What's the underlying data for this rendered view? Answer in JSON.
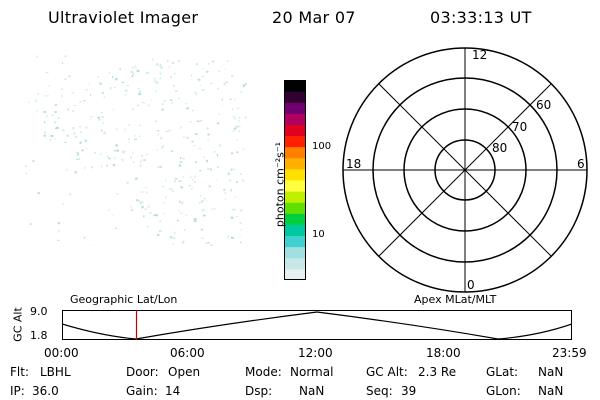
{
  "header": {
    "title": "Ultraviolet Imager",
    "date": "20 Mar 07",
    "time": "03:33:13 UT"
  },
  "colorbar": {
    "axis_title": "photon cm⁻²s⁻¹",
    "tick_100": "100",
    "tick_10": "10",
    "colors": [
      "#e6f2f2",
      "#c8e8e8",
      "#a0e0e0",
      "#40d0d0",
      "#00c8a0",
      "#00d040",
      "#60e000",
      "#c0f000",
      "#ffff40",
      "#ffe000",
      "#ffb000",
      "#ff8000",
      "#ff2000",
      "#e00020",
      "#b00060",
      "#700070",
      "#300030",
      "#000000"
    ]
  },
  "polar": {
    "lat_labels": [
      "60",
      "70",
      "80"
    ],
    "mlt_labels": {
      "top": "12",
      "bottom": "0",
      "left": "18",
      "right": "6"
    }
  },
  "timeline": {
    "left_title": "Geographic Lat/Lon",
    "right_title": "Apex MLat/MLT",
    "y_title": "GC Alt",
    "y_ticks": [
      "9.0",
      "1.8"
    ],
    "time_ticks": [
      "00:00",
      "06:00",
      "12:00",
      "18:00",
      "23:59"
    ],
    "current_time_fraction": 0.146
  },
  "info": {
    "flt_label": "Flt:",
    "flt_value": "LBHL",
    "ip_label": "IP:",
    "ip_value": "36.0",
    "door_label": "Door:",
    "door_value": "Open",
    "gain_label": "Gain:",
    "gain_value": "14",
    "mode_label": "Mode:",
    "mode_value": "Normal",
    "dsp_label": "Dsp:",
    "dsp_value": "NaN",
    "gcalt_label": "GC Alt:",
    "gcalt_value": "2.3 Re",
    "seq_label": "Seq:",
    "seq_value": "39",
    "glat_label": "GLat:",
    "glat_value": "NaN",
    "glon_label": "GLon:",
    "glon_value": "NaN"
  }
}
